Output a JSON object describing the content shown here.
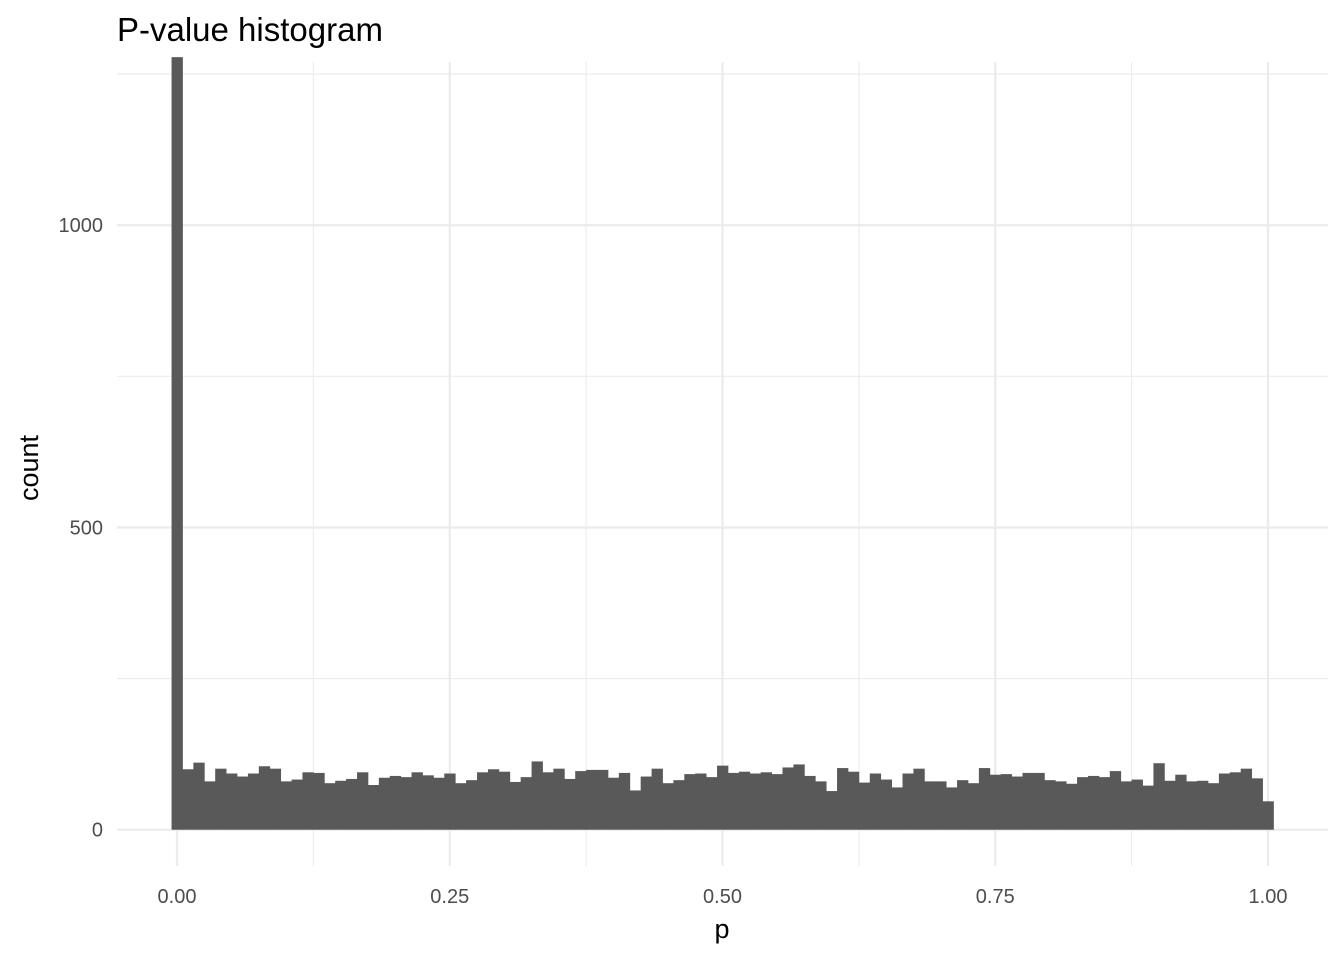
{
  "chart_data": {
    "type": "bar",
    "title": "P-value histogram",
    "xlabel": "p",
    "ylabel": "count",
    "bin_width": 0.01,
    "x_range": [
      -0.005,
      1.005
    ],
    "xlim": [
      -0.055,
      1.055
    ],
    "ylim": [
      -60,
      1270
    ],
    "x_ticks": [
      0,
      0.25,
      0.5,
      0.75,
      1
    ],
    "x_tick_labels": [
      "0.00",
      "0.25",
      "0.50",
      "0.75",
      "1.00"
    ],
    "y_ticks": [
      0,
      500,
      1000
    ],
    "y_tick_labels": [
      "0",
      "500",
      "1000"
    ],
    "bar_color": "#595959",
    "grid": true,
    "values": [
      1278,
      100,
      111,
      80,
      101,
      93,
      88,
      93,
      105,
      101,
      80,
      83,
      95,
      94,
      77,
      81,
      84,
      95,
      74,
      86,
      89,
      87,
      95,
      90,
      86,
      93,
      77,
      82,
      95,
      100,
      96,
      79,
      87,
      113,
      95,
      101,
      84,
      97,
      99,
      99,
      86,
      94,
      65,
      88,
      101,
      77,
      82,
      92,
      93,
      87,
      106,
      94,
      96,
      93,
      95,
      92,
      103,
      108,
      89,
      80,
      64,
      102,
      96,
      78,
      93,
      83,
      70,
      93,
      101,
      80,
      80,
      70,
      82,
      77,
      102,
      91,
      92,
      88,
      94,
      94,
      82,
      80,
      76,
      87,
      89,
      87,
      97,
      80,
      83,
      73,
      110,
      81,
      91,
      80,
      81,
      77,
      93,
      95,
      101,
      85,
      47
    ]
  }
}
